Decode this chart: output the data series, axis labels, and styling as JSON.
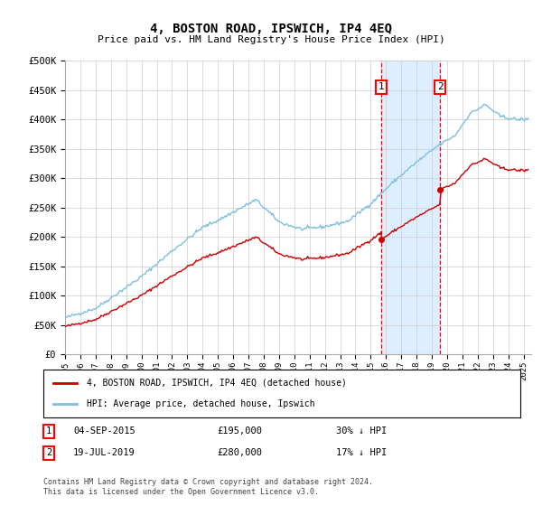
{
  "title": "4, BOSTON ROAD, IPSWICH, IP4 4EQ",
  "subtitle": "Price paid vs. HM Land Registry's House Price Index (HPI)",
  "hpi_color": "#7fbfdf",
  "price_color": "#cc0000",
  "highlight_color": "#ddeeff",
  "ylim": [
    0,
    500000
  ],
  "yticks": [
    0,
    50000,
    100000,
    150000,
    200000,
    250000,
    300000,
    350000,
    400000,
    450000,
    500000
  ],
  "ytick_labels": [
    "£0",
    "£50K",
    "£100K",
    "£150K",
    "£200K",
    "£250K",
    "£300K",
    "£350K",
    "£400K",
    "£450K",
    "£500K"
  ],
  "xtick_labels": [
    "1995",
    "1996",
    "1997",
    "1998",
    "1999",
    "2000",
    "2001",
    "2002",
    "2003",
    "2004",
    "2005",
    "2006",
    "2007",
    "2008",
    "2009",
    "2010",
    "2011",
    "2012",
    "2013",
    "2014",
    "2015",
    "2016",
    "2017",
    "2018",
    "2019",
    "2020",
    "2021",
    "2022",
    "2023",
    "2024",
    "2025"
  ],
  "sale1_date": "04-SEP-2015",
  "sale1_price": 195000,
  "sale1_hpi_diff": "30% ↓ HPI",
  "sale1_x": 2015.67,
  "sale2_date": "19-JUL-2019",
  "sale2_price": 280000,
  "sale2_hpi_diff": "17% ↓ HPI",
  "sale2_x": 2019.54,
  "legend_label1": "4, BOSTON ROAD, IPSWICH, IP4 4EQ (detached house)",
  "legend_label2": "HPI: Average price, detached house, Ipswich",
  "footnote": "Contains HM Land Registry data © Crown copyright and database right 2024.\nThis data is licensed under the Open Government Licence v3.0."
}
